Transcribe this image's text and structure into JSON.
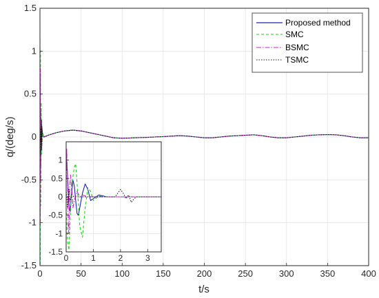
{
  "chart_data": {
    "type": "line",
    "xlabel": "t/s",
    "ylabel": "q/(deg/s)",
    "xlim": [
      0,
      400
    ],
    "ylim": [
      -1.5,
      1.5
    ],
    "xticks": [
      0,
      50,
      100,
      150,
      200,
      250,
      300,
      350,
      400
    ],
    "yticks": [
      -1.5,
      -1,
      -0.5,
      0,
      0.5,
      1,
      1.5
    ],
    "xtick_labels": [
      "0",
      "50",
      "100",
      "150",
      "200",
      "250",
      "300",
      "350",
      "400"
    ],
    "ytick_labels": [
      "-1.5",
      "-1",
      "-0.5",
      "0",
      "0.5",
      "1",
      "1.5"
    ],
    "grid": true,
    "legend_position": "top-right",
    "series": [
      {
        "name": "Proposed method",
        "color": "#1f1fb4",
        "style": "solid",
        "x": [
          0,
          1,
          2,
          3,
          5,
          10,
          20,
          30,
          40,
          50,
          60,
          70,
          80,
          90,
          100,
          110,
          120,
          130,
          140,
          150,
          160,
          170,
          180,
          190,
          200,
          210,
          220,
          230,
          240,
          250,
          260,
          270,
          280,
          290,
          300,
          310,
          320,
          330,
          340,
          350,
          360,
          370,
          380,
          390,
          400
        ],
        "y": [
          0.6,
          -0.35,
          0.15,
          0.05,
          0.0,
          0.02,
          0.05,
          0.07,
          0.08,
          0.07,
          0.05,
          0.03,
          0.01,
          -0.01,
          -0.015,
          -0.012,
          -0.008,
          -0.005,
          0.0,
          0.004,
          0.01,
          0.015,
          0.01,
          0.0,
          -0.01,
          -0.01,
          0.0,
          0.01,
          0.015,
          0.02,
          0.025,
          0.015,
          0.0,
          -0.01,
          -0.01,
          0.0,
          0.01,
          0.02,
          0.025,
          0.028,
          0.025,
          0.015,
          0.0,
          -0.01,
          -0.01
        ]
      },
      {
        "name": "SMC",
        "color": "#22cc22",
        "style": "dashed",
        "x": [
          0,
          0.3,
          0.6,
          1,
          1.5,
          2,
          3,
          5,
          10,
          20,
          30,
          40,
          50,
          60,
          70,
          80,
          90,
          100,
          110,
          120,
          130,
          140,
          150,
          160,
          170,
          180,
          190,
          200,
          210,
          220,
          230,
          240,
          250,
          260,
          270,
          280,
          290,
          300,
          310,
          320,
          330,
          340,
          350,
          360,
          370,
          380,
          390,
          400
        ],
        "y": [
          0.9,
          -1.5,
          1.0,
          -0.8,
          0.4,
          -0.2,
          0.05,
          0.0,
          0.02,
          0.05,
          0.07,
          0.08,
          0.07,
          0.05,
          0.03,
          0.01,
          -0.01,
          -0.015,
          -0.012,
          -0.008,
          -0.005,
          0.0,
          0.004,
          0.01,
          0.015,
          0.01,
          0.0,
          -0.01,
          -0.01,
          0.0,
          0.01,
          0.015,
          0.02,
          0.025,
          0.015,
          0.0,
          -0.01,
          -0.01,
          0.0,
          0.01,
          0.02,
          0.025,
          0.028,
          0.025,
          0.015,
          0.0,
          -0.01,
          -0.01
        ]
      },
      {
        "name": "BSMC",
        "color": "#cc22cc",
        "style": "dashdot",
        "x": [
          0,
          0.2,
          0.4,
          0.7,
          1,
          1.5,
          2,
          3,
          5,
          10,
          20,
          30,
          40,
          50,
          60,
          70,
          80,
          90,
          100,
          110,
          120,
          130,
          140,
          150,
          160,
          170,
          180,
          190,
          200,
          210,
          220,
          230,
          240,
          250,
          260,
          270,
          280,
          290,
          300,
          310,
          320,
          330,
          340,
          350,
          360,
          370,
          380,
          390,
          400
        ],
        "y": [
          1.35,
          -1.0,
          0.8,
          -0.5,
          0.3,
          -0.15,
          0.08,
          0.0,
          0.0,
          0.02,
          0.05,
          0.07,
          0.08,
          0.07,
          0.05,
          0.03,
          0.01,
          -0.01,
          -0.015,
          -0.012,
          -0.008,
          -0.005,
          0.0,
          0.004,
          0.01,
          0.015,
          0.01,
          0.0,
          -0.01,
          -0.01,
          0.0,
          0.01,
          0.015,
          0.02,
          0.025,
          0.015,
          0.0,
          -0.01,
          -0.01,
          0.0,
          0.01,
          0.02,
          0.025,
          0.028,
          0.025,
          0.015,
          0.0,
          -0.01,
          -0.01
        ]
      },
      {
        "name": "TSMC",
        "color": "#111111",
        "style": "dotted",
        "x": [
          0,
          0.5,
          1,
          1.5,
          2,
          2.1,
          2.2,
          2.4,
          2.6,
          3,
          5,
          10,
          20,
          30,
          40,
          50,
          60,
          70,
          80,
          90,
          100,
          110,
          120,
          130,
          140,
          150,
          160,
          170,
          180,
          190,
          200,
          210,
          220,
          230,
          240,
          250,
          260,
          270,
          280,
          290,
          300,
          310,
          320,
          330,
          340,
          350,
          360,
          370,
          380,
          390,
          400
        ],
        "y": [
          0.25,
          -0.2,
          0.1,
          -0.05,
          0.2,
          -0.15,
          0.12,
          -0.08,
          0.05,
          0.0,
          0.0,
          0.02,
          0.05,
          0.07,
          0.08,
          0.07,
          0.05,
          0.03,
          0.01,
          -0.01,
          -0.015,
          -0.012,
          -0.008,
          -0.005,
          0.0,
          0.004,
          0.01,
          0.015,
          0.01,
          0.0,
          -0.01,
          -0.01,
          0.0,
          0.01,
          0.015,
          0.02,
          0.025,
          0.015,
          0.0,
          -0.01,
          -0.01,
          0.0,
          0.01,
          0.02,
          0.025,
          0.028,
          0.025,
          0.015,
          0.0,
          -0.01,
          -0.01
        ]
      }
    ],
    "inset": {
      "xlim": [
        0,
        3.5
      ],
      "ylim": [
        -1.5,
        1.5
      ],
      "xticks": [
        0,
        1,
        2,
        3
      ],
      "yticks": [
        -1.5,
        -1,
        -0.5,
        0,
        0.5,
        1
      ],
      "xtick_labels": [
        "0",
        "1",
        "2",
        "3"
      ],
      "ytick_labels": [
        "-1.5",
        "-1",
        "-0.5",
        "0",
        "0.5",
        "1"
      ],
      "grid": true,
      "series": [
        {
          "name": "Proposed method",
          "x": [
            0,
            0.05,
            0.1,
            0.15,
            0.2,
            0.25,
            0.3,
            0.35,
            0.4,
            0.45,
            0.5,
            0.6,
            0.7,
            0.8,
            0.9,
            1.0,
            1.2,
            1.5,
            2.0,
            2.5,
            3.0,
            3.5
          ],
          "y": [
            1.2,
            0.6,
            -0.2,
            -0.4,
            0.1,
            0.45,
            0.3,
            -0.1,
            -0.45,
            -0.5,
            -0.3,
            0.1,
            0.35,
            0.2,
            -0.1,
            -0.05,
            0.05,
            0.0,
            0.0,
            0.0,
            0.0,
            0.0
          ]
        },
        {
          "name": "SMC",
          "x": [
            0,
            0.05,
            0.1,
            0.15,
            0.2,
            0.3,
            0.35,
            0.4,
            0.5,
            0.6,
            0.7,
            0.8,
            0.9,
            1.0,
            1.2,
            1.5,
            2.0,
            2.5,
            3.0,
            3.5
          ],
          "y": [
            -0.3,
            -1.2,
            -1.45,
            -0.6,
            0.3,
            0.8,
            0.9,
            0.4,
            -0.8,
            -1.1,
            -0.3,
            0.25,
            0.15,
            -0.1,
            0.02,
            0.0,
            0.0,
            0.0,
            0.0,
            0.0
          ]
        },
        {
          "name": "BSMC",
          "x": [
            0,
            0.02,
            0.05,
            0.08,
            0.1,
            0.13,
            0.16,
            0.2,
            0.25,
            0.3,
            0.4,
            0.5,
            0.6,
            0.8,
            1.0,
            1.5,
            2.0,
            3.0,
            3.5
          ],
          "y": [
            0.0,
            1.3,
            0.5,
            -0.9,
            -1.0,
            0.2,
            0.6,
            0.3,
            -0.3,
            -0.1,
            0.15,
            0.0,
            0.05,
            0.0,
            0.0,
            0.0,
            0.0,
            0.0,
            0.0
          ]
        },
        {
          "name": "TSMC",
          "x": [
            0,
            0.05,
            0.1,
            0.15,
            0.2,
            0.3,
            0.5,
            0.8,
            1.0,
            1.4,
            1.8,
            1.9,
            2.0,
            2.1,
            2.2,
            2.3,
            2.4,
            2.5,
            2.6,
            2.8,
            3.0,
            3.5
          ],
          "y": [
            0.2,
            -0.3,
            0.2,
            -0.1,
            0.05,
            0.0,
            0.0,
            0.0,
            0.0,
            0.0,
            0.0,
            0.1,
            0.2,
            0.1,
            -0.05,
            0.05,
            -0.15,
            -0.05,
            0.0,
            0.0,
            0.0,
            0.0
          ]
        }
      ]
    }
  }
}
